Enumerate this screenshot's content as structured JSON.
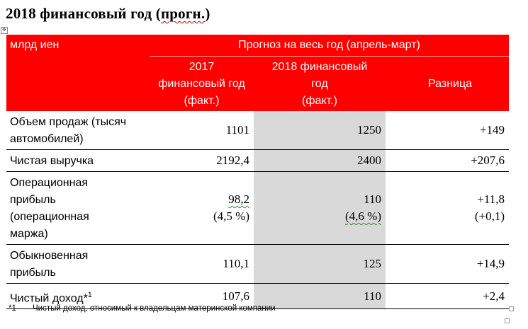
{
  "title": {
    "main": "2018 финансовый год (",
    "wavy": "прогн.",
    "close": ")"
  },
  "anchor_glyph": "✥",
  "header": {
    "unit": "млрд иен",
    "span": "Прогноз на весь год (апрель-март)",
    "col1": [
      "2017",
      "финансовый год",
      "(факт.)"
    ],
    "col2": [
      "2018 финансовый",
      "год",
      "(факт.)"
    ],
    "col3": "Разница"
  },
  "rows": [
    {
      "label": [
        "Объем продаж (тысяч",
        "автомобилей)"
      ],
      "v2017": "1101",
      "v2018": "1250",
      "diff": "+149"
    },
    {
      "label": [
        "Чистая выручка"
      ],
      "v2017": "2192,4",
      "v2018": "2400",
      "diff": "+207,6"
    },
    {
      "label": [
        "Операционная",
        "прибыль",
        "(операционная",
        "маржа)"
      ],
      "v2017": "98,2",
      "v2017_sub": "(4,5 %)",
      "v2018": "110",
      "v2018_sub": "(4,6 %)",
      "diff": "+11,8",
      "diff_sub": "(+0,1)"
    },
    {
      "label": [
        "Обыкновенная",
        "прибыль"
      ],
      "v2017": "110,1",
      "v2018": "125",
      "diff": "+14,9"
    },
    {
      "label": [
        "Чистый доход*"
      ],
      "label_sup": "1",
      "v2017": "107,6",
      "v2018": "110",
      "diff": "+2,4"
    }
  ],
  "footnote": {
    "mark": "*1",
    "text": "Чистый доход, относимый к владельцам материнской компании"
  }
}
